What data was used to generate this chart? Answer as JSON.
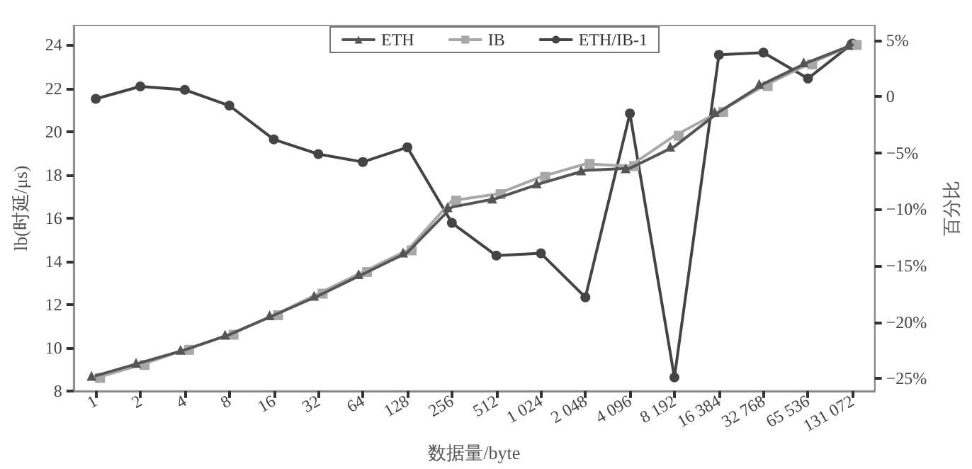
{
  "chart_data": {
    "type": "line",
    "xlabel": "数据量/byte",
    "ylabel": "lb(时延/μs)",
    "y2label": "百分比",
    "categories": [
      "1",
      "2",
      "4",
      "8",
      "16",
      "32",
      "64",
      "128",
      "256",
      "512",
      "1 024",
      "2 048",
      "4 096",
      "8 192",
      "16 384",
      "32 768",
      "65 536",
      "131 072"
    ],
    "series": [
      {
        "name": "ETH",
        "color": "#555555",
        "marker": "triangle",
        "values": [
          8.7,
          9.3,
          9.9,
          10.6,
          11.5,
          12.4,
          13.4,
          14.4,
          16.5,
          16.9,
          17.6,
          18.2,
          18.3,
          19.3,
          20.9,
          22.2,
          23.2,
          24.0
        ]
      },
      {
        "name": "IB",
        "color": "#a8a8a8",
        "marker": "square",
        "values": [
          8.6,
          9.2,
          9.9,
          10.6,
          11.5,
          12.5,
          13.5,
          14.5,
          16.8,
          17.1,
          17.9,
          18.5,
          18.4,
          19.8,
          20.9,
          22.1,
          23.1,
          24.0
        ]
      },
      {
        "name": "ETH/IB-1",
        "color": "#444444",
        "marker": "circle",
        "axis": "y2",
        "values": [
          -0.2,
          0.9,
          0.6,
          -0.8,
          -3.8,
          -5.1,
          -5.8,
          -4.5,
          -11.2,
          -14.1,
          -13.9,
          -17.8,
          -1.5,
          -24.9,
          3.7,
          3.9,
          1.6,
          4.7
        ]
      }
    ],
    "ylim": [
      8,
      24.9
    ],
    "yticks": [
      8,
      10,
      12,
      14,
      16,
      18,
      20,
      22,
      24
    ],
    "y2lim": [
      -26.1,
      6.3
    ],
    "y2ticks": [
      {
        "value": -25,
        "label": "−25%"
      },
      {
        "value": -20,
        "label": "−20%"
      },
      {
        "value": -15,
        "label": "−15%"
      },
      {
        "value": -10,
        "label": "−10%"
      },
      {
        "value": -5,
        "label": "−5%"
      },
      0,
      {
        "value": 5,
        "label": "5%"
      }
    ],
    "legend": "top right",
    "grid": false,
    "line_style": "solid"
  }
}
